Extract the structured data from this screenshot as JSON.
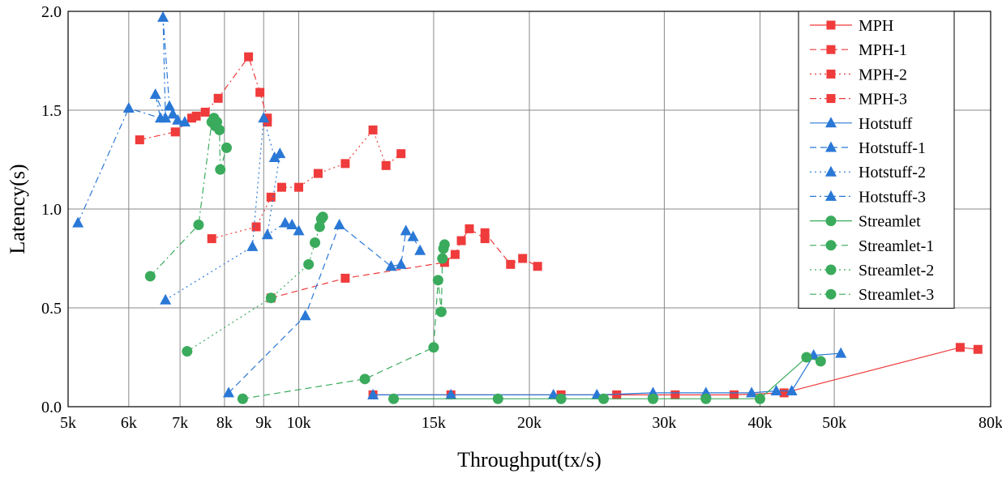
{
  "chart_data": {
    "type": "line",
    "xlabel": "Throughput(tx/s)",
    "ylabel": "Latency(s)",
    "xscale": "log",
    "xlim": [
      5000,
      80000
    ],
    "ylim": [
      0,
      2.0
    ],
    "grid": true,
    "legend_position": "top-right",
    "x_ticks": [
      {
        "value": 5000,
        "label": "5k"
      },
      {
        "value": 6000,
        "label": "6k"
      },
      {
        "value": 7000,
        "label": "7k"
      },
      {
        "value": 8000,
        "label": "8k"
      },
      {
        "value": 9000,
        "label": "9k"
      },
      {
        "value": 10000,
        "label": "10k"
      },
      {
        "value": 15000,
        "label": "15k"
      },
      {
        "value": 20000,
        "label": "20k"
      },
      {
        "value": 30000,
        "label": "30k"
      },
      {
        "value": 40000,
        "label": "40k"
      },
      {
        "value": 50000,
        "label": "50k"
      },
      {
        "value": 80000,
        "label": "80k"
      }
    ],
    "y_ticks": [
      {
        "value": 0,
        "label": "0.0"
      },
      {
        "value": 0.5,
        "label": "0.5"
      },
      {
        "value": 1.0,
        "label": "1.0"
      },
      {
        "value": 1.5,
        "label": "1.5"
      },
      {
        "value": 2.0,
        "label": "2.0"
      }
    ],
    "colors": {
      "MPH": "#ef3b3b",
      "Hotstuff": "#2a78d6",
      "Streamlet": "#3aab5c"
    },
    "series": [
      {
        "name": "MPH",
        "group": "MPH",
        "marker": "square",
        "dash": "solid",
        "points": [
          [
            12500,
            0.06
          ],
          [
            15800,
            0.06
          ],
          [
            22000,
            0.06
          ],
          [
            26000,
            0.06
          ],
          [
            31000,
            0.06
          ],
          [
            37000,
            0.06
          ],
          [
            43000,
            0.07
          ],
          [
            73000,
            0.3
          ],
          [
            77000,
            0.29
          ]
        ]
      },
      {
        "name": "MPH-1",
        "group": "MPH",
        "marker": "square",
        "dash": "dashed",
        "points": [
          [
            9200,
            0.55
          ],
          [
            11500,
            0.65
          ],
          [
            15500,
            0.73
          ],
          [
            16000,
            0.77
          ],
          [
            16300,
            0.84
          ],
          [
            16700,
            0.9
          ],
          [
            17500,
            0.85
          ],
          [
            17500,
            0.88
          ],
          [
            18900,
            0.72
          ],
          [
            19600,
            0.75
          ],
          [
            20500,
            0.71
          ]
        ]
      },
      {
        "name": "MPH-2",
        "group": "MPH",
        "marker": "square",
        "dash": "dotted",
        "points": [
          [
            7700,
            0.85
          ],
          [
            8800,
            0.91
          ],
          [
            9200,
            1.06
          ],
          [
            9500,
            1.11
          ],
          [
            10000,
            1.11
          ],
          [
            10600,
            1.18
          ],
          [
            11500,
            1.23
          ],
          [
            12500,
            1.4
          ],
          [
            13000,
            1.22
          ],
          [
            13600,
            1.28
          ]
        ]
      },
      {
        "name": "MPH-3",
        "group": "MPH",
        "marker": "square",
        "dash": "dashdot",
        "points": [
          [
            6200,
            1.35
          ],
          [
            6900,
            1.39
          ],
          [
            7250,
            1.46
          ],
          [
            7350,
            1.47
          ],
          [
            7550,
            1.49
          ],
          [
            7850,
            1.56
          ],
          [
            8600,
            1.77
          ],
          [
            8900,
            1.59
          ],
          [
            9100,
            1.46
          ],
          [
            9100,
            1.44
          ]
        ]
      },
      {
        "name": "Hotstuff",
        "group": "Hotstuff",
        "marker": "triangle",
        "dash": "solid",
        "points": [
          [
            12500,
            0.06
          ],
          [
            15800,
            0.06
          ],
          [
            21500,
            0.06
          ],
          [
            24500,
            0.06
          ],
          [
            29000,
            0.07
          ],
          [
            34000,
            0.07
          ],
          [
            39000,
            0.07
          ],
          [
            42000,
            0.08
          ],
          [
            44000,
            0.08
          ],
          [
            47000,
            0.26
          ],
          [
            51000,
            0.27
          ]
        ]
      },
      {
        "name": "Hotstuff-1",
        "group": "Hotstuff",
        "marker": "triangle",
        "dash": "dashed",
        "points": [
          [
            8100,
            0.07
          ],
          [
            10200,
            0.46
          ],
          [
            11300,
            0.92
          ],
          [
            13200,
            0.71
          ],
          [
            13600,
            0.72
          ],
          [
            13800,
            0.89
          ],
          [
            14100,
            0.86
          ],
          [
            14400,
            0.79
          ]
        ]
      },
      {
        "name": "Hotstuff-2",
        "group": "Hotstuff",
        "marker": "triangle",
        "dash": "dotted",
        "points": [
          [
            6700,
            0.54
          ],
          [
            8700,
            0.81
          ],
          [
            9000,
            1.46
          ],
          [
            9300,
            1.26
          ],
          [
            9450,
            1.28
          ],
          [
            9100,
            0.87
          ],
          [
            9600,
            0.93
          ],
          [
            9800,
            0.92
          ],
          [
            10000,
            0.89
          ]
        ]
      },
      {
        "name": "Hotstuff-3",
        "group": "Hotstuff",
        "marker": "triangle",
        "dash": "dashdot",
        "points": [
          [
            5150,
            0.93
          ],
          [
            6000,
            1.51
          ],
          [
            6600,
            1.46
          ],
          [
            6500,
            1.58
          ],
          [
            6700,
            1.46
          ],
          [
            6650,
            1.97
          ],
          [
            6780,
            1.52
          ],
          [
            6850,
            1.48
          ],
          [
            6950,
            1.45
          ],
          [
            7100,
            1.44
          ]
        ]
      },
      {
        "name": "Streamlet",
        "group": "Streamlet",
        "marker": "circle",
        "dash": "solid",
        "points": [
          [
            13300,
            0.04
          ],
          [
            18200,
            0.04
          ],
          [
            22000,
            0.04
          ],
          [
            25000,
            0.04
          ],
          [
            29000,
            0.04
          ],
          [
            34000,
            0.04
          ],
          [
            40000,
            0.04
          ],
          [
            46000,
            0.25
          ],
          [
            48000,
            0.23
          ]
        ]
      },
      {
        "name": "Streamlet-1",
        "group": "Streamlet",
        "marker": "circle",
        "dash": "dashed",
        "points": [
          [
            8450,
            0.04
          ],
          [
            12200,
            0.14
          ],
          [
            15000,
            0.3
          ],
          [
            15200,
            0.64
          ],
          [
            15350,
            0.48
          ],
          [
            15400,
            0.75
          ],
          [
            15450,
            0.8
          ],
          [
            15500,
            0.82
          ]
        ]
      },
      {
        "name": "Streamlet-2",
        "group": "Streamlet",
        "marker": "circle",
        "dash": "dotted",
        "points": [
          [
            7150,
            0.28
          ],
          [
            9200,
            0.55
          ],
          [
            10300,
            0.72
          ],
          [
            10500,
            0.83
          ],
          [
            10650,
            0.91
          ],
          [
            10700,
            0.95
          ],
          [
            10750,
            0.96
          ]
        ]
      },
      {
        "name": "Streamlet-3",
        "group": "Streamlet",
        "marker": "circle",
        "dash": "dashdot",
        "points": [
          [
            6400,
            0.66
          ],
          [
            7400,
            0.92
          ],
          [
            7700,
            1.44
          ],
          [
            7750,
            1.46
          ],
          [
            7780,
            1.42
          ],
          [
            7820,
            1.44
          ],
          [
            7880,
            1.4
          ],
          [
            7900,
            1.2
          ],
          [
            8050,
            1.31
          ]
        ]
      }
    ]
  }
}
